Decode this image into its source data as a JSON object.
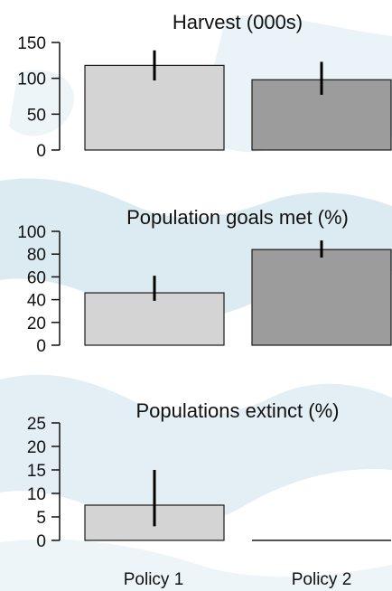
{
  "colors": {
    "policy_1_bar": "#d4d4d4",
    "policy_2_bar": "#9c9c9c",
    "bar_outline": "#1a1a1a",
    "error_bar": "#000000",
    "background_watermark": "#dcebf1"
  },
  "chart_data": [
    {
      "type": "bar",
      "title": "Harvest (000s)",
      "categories": [
        "Policy 1",
        "Policy 2"
      ],
      "values": [
        118,
        98
      ],
      "errors": [
        [
          97,
          139
        ],
        [
          77,
          123
        ]
      ],
      "ylim": [
        0,
        150
      ],
      "yticks": [
        0,
        50,
        100,
        150
      ],
      "xlabel": "",
      "ylabel": "",
      "grid": false
    },
    {
      "type": "bar",
      "title": "Population goals met (%)",
      "categories": [
        "Policy 1",
        "Policy 2"
      ],
      "values": [
        46,
        84
      ],
      "errors": [
        [
          39,
          61
        ],
        [
          77,
          92
        ]
      ],
      "ylim": [
        0,
        100
      ],
      "yticks": [
        0,
        20,
        40,
        60,
        80,
        100
      ],
      "xlabel": "",
      "ylabel": "",
      "grid": false
    },
    {
      "type": "bar",
      "title": "Populations extinct (%)",
      "categories": [
        "Policy 1",
        "Policy 2"
      ],
      "values": [
        7.5,
        0
      ],
      "errors": [
        [
          3,
          15
        ],
        null
      ],
      "ylim": [
        0,
        25
      ],
      "yticks": [
        0,
        5,
        10,
        15,
        20,
        25
      ],
      "xlabel": "",
      "ylabel": "",
      "grid": false
    }
  ]
}
